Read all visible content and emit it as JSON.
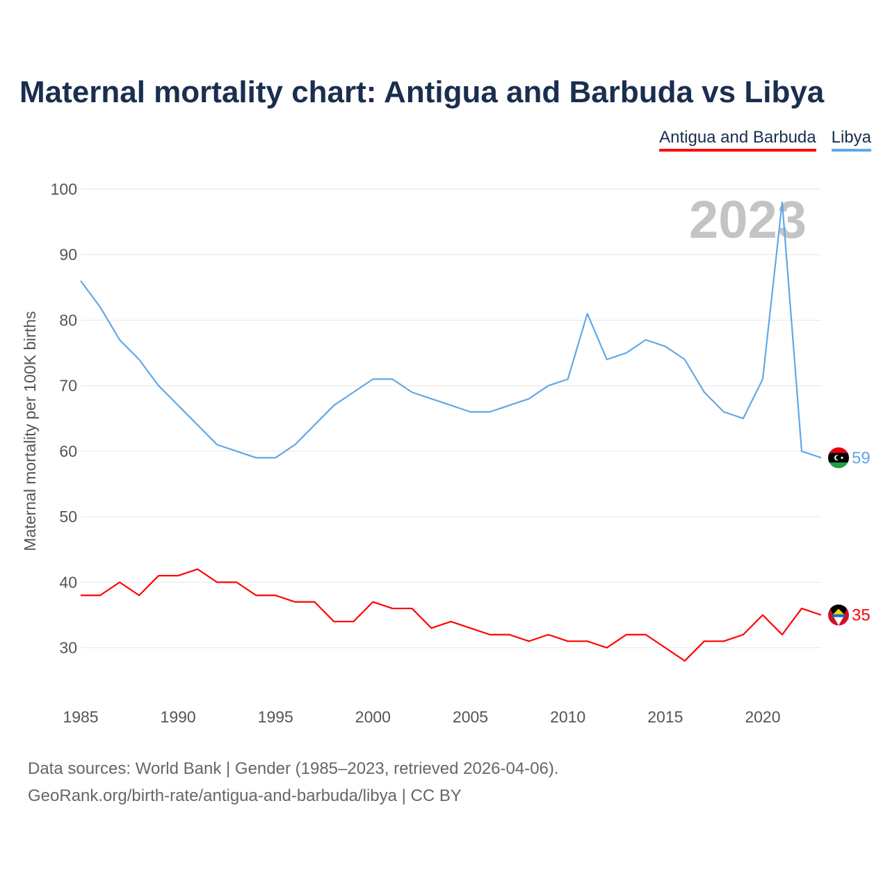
{
  "title": "Maternal mortality chart: Antigua and Barbuda vs Libya",
  "legend": [
    {
      "label": "Antigua and Barbuda",
      "color": "#ff0000"
    },
    {
      "label": "Libya",
      "color": "#5fa8e8"
    }
  ],
  "source": {
    "line1": "Data sources: World Bank | Gender (1985–2023, retrieved 2026-04-06).",
    "line2": "GeoRank.org/birth-rate/antigua-and-barbuda/libya | CC BY"
  },
  "chart_data": {
    "type": "line",
    "title": "Maternal mortality chart: Antigua and Barbuda vs Libya",
    "ylabel": "Maternal mortality per 100K births",
    "xlabel": "",
    "year_label": "2023",
    "x": [
      1985,
      1986,
      1987,
      1988,
      1989,
      1990,
      1991,
      1992,
      1993,
      1994,
      1995,
      1996,
      1997,
      1998,
      1999,
      2000,
      2001,
      2002,
      2003,
      2004,
      2005,
      2006,
      2007,
      2008,
      2009,
      2010,
      2011,
      2012,
      2013,
      2014,
      2015,
      2016,
      2017,
      2018,
      2019,
      2020,
      2021,
      2022,
      2023
    ],
    "xlim": [
      1985,
      2023
    ],
    "ylim": [
      22,
      100
    ],
    "xticks": [
      1985,
      1990,
      1995,
      2000,
      2005,
      2010,
      2015,
      2020
    ],
    "yticks": [
      30,
      40,
      50,
      60,
      70,
      80,
      90,
      100
    ],
    "grid": true,
    "legend_position": "top-right",
    "series": [
      {
        "name": "Antigua and Barbuda",
        "color": "#ff0000",
        "end_label": "35",
        "values": [
          38,
          38,
          40,
          38,
          41,
          41,
          42,
          40,
          40,
          38,
          38,
          37,
          37,
          34,
          34,
          37,
          36,
          36,
          33,
          34,
          33,
          32,
          32,
          31,
          32,
          31,
          31,
          30,
          32,
          32,
          30,
          28,
          31,
          31,
          32,
          35,
          32,
          36,
          35
        ]
      },
      {
        "name": "Libya",
        "color": "#5fa8e8",
        "end_label": "59",
        "values": [
          86,
          82,
          77,
          74,
          70,
          67,
          64,
          61,
          60,
          59,
          59,
          61,
          64,
          67,
          69,
          71,
          71,
          69,
          68,
          67,
          66,
          66,
          67,
          68,
          70,
          71,
          81,
          74,
          75,
          77,
          76,
          74,
          69,
          66,
          65,
          71,
          98,
          60,
          59
        ]
      }
    ]
  }
}
